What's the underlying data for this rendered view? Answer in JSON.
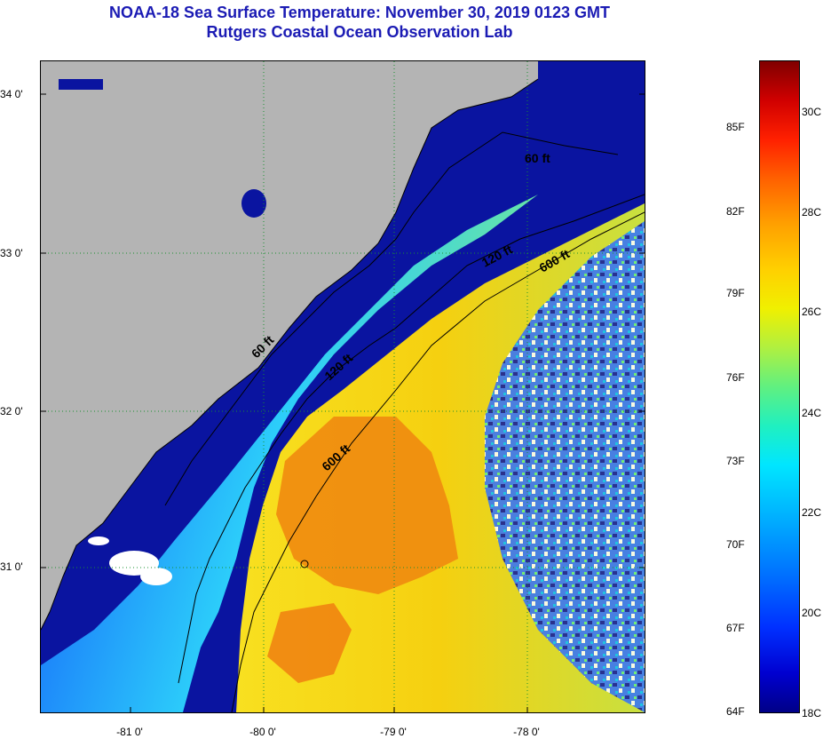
{
  "title": "NOAA-18 Sea Surface Temperature:  November 30, 2019 0123 GMT",
  "subtitle": "Rutgers Coastal Ocean Observation Lab",
  "lat_labels": [
    "34 0'",
    "33 0'",
    "32 0'",
    "31 0'"
  ],
  "lon_labels": [
    "-81 0'",
    "-80 0'",
    "-79 0'",
    "-78 0'"
  ],
  "contours": [
    "60 ft",
    "120 ft",
    "600 ft",
    "60 ft",
    "120 ft",
    "600 ft"
  ],
  "colorbar": {
    "fahrenheit": [
      "85F",
      "82F",
      "79F",
      "76F",
      "73F",
      "70F",
      "67F",
      "64F"
    ],
    "celsius": [
      "30C",
      "28C",
      "26C",
      "24C",
      "22C",
      "20C",
      "18C"
    ]
  },
  "colors": {
    "land": "#b4b4b4",
    "deep_blue": "#0a14a0",
    "title": "#1b1bb4"
  }
}
